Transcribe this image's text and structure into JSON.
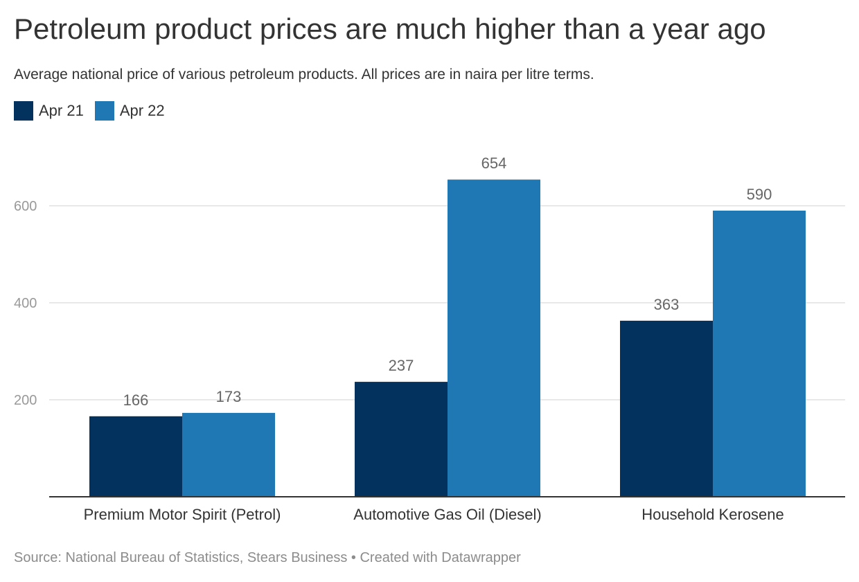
{
  "title": "Petroleum product prices are much higher than a year ago",
  "subtitle": "Average national price of various petroleum products. All prices are in naira per litre terms.",
  "footer": "Source: National Bureau of Statistics, Stears Business • Created with Datawrapper",
  "colors": {
    "apr21": "#03325f",
    "apr22": "#1f77b4",
    "grid": "#e0e0e0",
    "axis": "#333333",
    "tick": "#999999",
    "label": "#666666"
  },
  "chart_data": {
    "type": "bar",
    "categories": [
      "Premium Motor Spirit (Petrol)",
      "Automotive Gas Oil (Diesel)",
      "Household Kerosene"
    ],
    "series": [
      {
        "name": "Apr 21",
        "values": [
          166,
          237,
          363
        ]
      },
      {
        "name": "Apr 22",
        "values": [
          173,
          654,
          590
        ]
      }
    ],
    "yticks": [
      200,
      400,
      600
    ],
    "ylim": [
      0,
      600
    ],
    "grid": true,
    "legend_position": "top-left",
    "title": "Petroleum product prices are much higher than a year ago",
    "xlabel": "",
    "ylabel": ""
  }
}
